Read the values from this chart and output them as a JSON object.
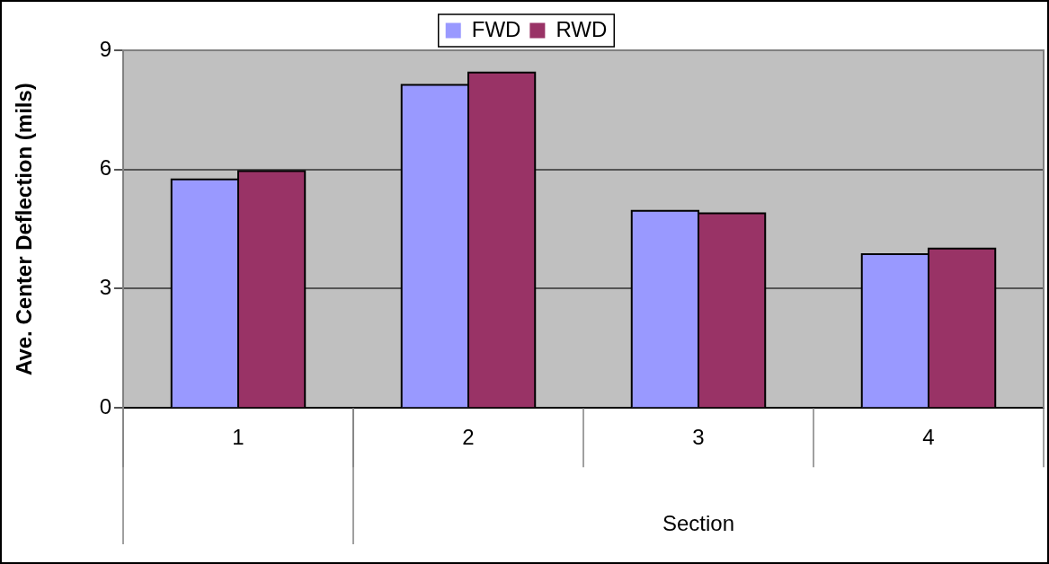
{
  "chart_data": {
    "type": "bar",
    "xlabel": "Section",
    "ylabel": "Ave. Center Deflection (mils)",
    "categories": [
      "1",
      "2",
      "3",
      "4"
    ],
    "series": [
      {
        "name": "FWD",
        "color": "#9999ff",
        "values": [
          5.75,
          8.13,
          4.96,
          3.87
        ]
      },
      {
        "name": "RWD",
        "color": "#993366",
        "values": [
          5.96,
          8.44,
          4.9,
          4.01
        ]
      }
    ],
    "ylim": [
      0,
      9
    ],
    "yticks": [
      0,
      3,
      6,
      9
    ],
    "grid": "y",
    "legend": "top"
  }
}
